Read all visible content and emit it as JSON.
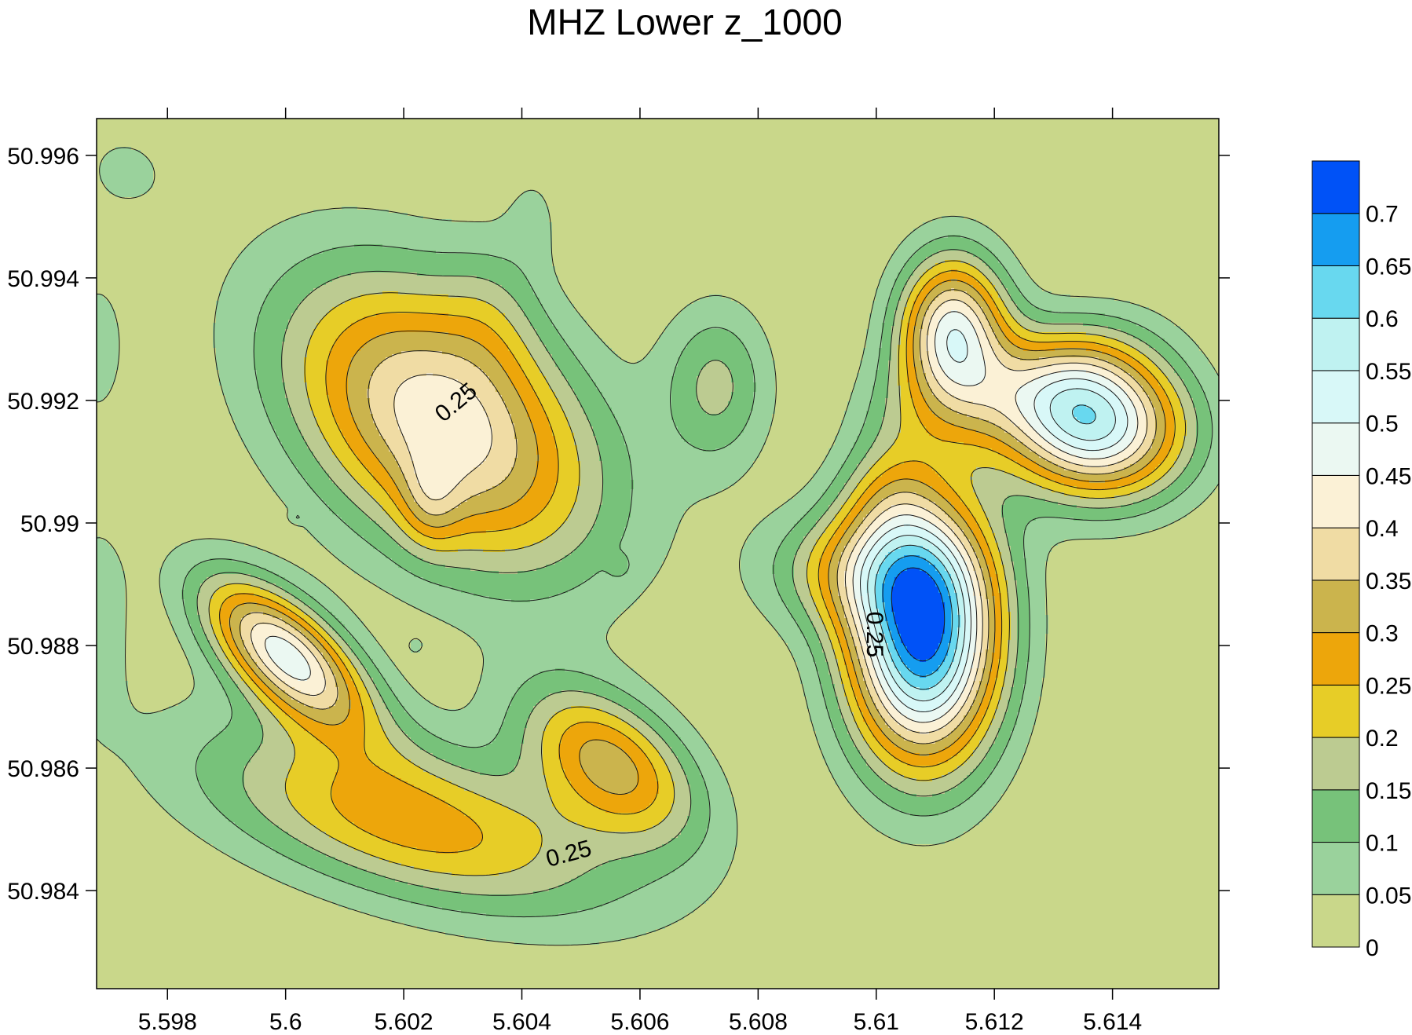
{
  "chart_data": {
    "type": "contour",
    "title": "MHZ Lower z_1000",
    "xlabel": "",
    "ylabel": "",
    "xlim": [
      5.5968,
      5.6158
    ],
    "ylim": [
      50.9824,
      50.9966
    ],
    "x_ticks": [
      5.598,
      5.6,
      5.602,
      5.604,
      5.606,
      5.608,
      5.61,
      5.612,
      5.614
    ],
    "x_tick_labels": [
      "5.598",
      "5.6",
      "5.602",
      "5.604",
      "5.606",
      "5.608",
      "5.61",
      "5.612",
      "5.614"
    ],
    "y_ticks": [
      50.996,
      50.994,
      50.992,
      50.99,
      50.988,
      50.986,
      50.984
    ],
    "y_tick_labels": [
      "50.996",
      "50.994",
      "50.992",
      "50.99",
      "50.988",
      "50.986",
      "50.984"
    ],
    "levels": [
      0,
      0.05,
      0.1,
      0.15,
      0.2,
      0.25,
      0.3,
      0.35,
      0.4,
      0.45,
      0.5,
      0.55,
      0.6,
      0.65,
      0.7
    ],
    "level_labels": [
      "0",
      "0.05",
      "0.1",
      "0.15",
      "0.2",
      "0.25",
      "0.3",
      "0.35",
      "0.4",
      "0.45",
      "0.5",
      "0.55",
      "0.6",
      "0.65",
      "0.7"
    ],
    "colors": [
      "#c9d78a",
      "#9ad29c",
      "#77c27a",
      "#bccb91",
      "#e7cd27",
      "#eda60b",
      "#cbb44d",
      "#f0dca4",
      "#fbf1d6",
      "#ebf8f2",
      "#d8f8f8",
      "#bff2f1",
      "#68d8ef",
      "#159df0",
      "#0052f7"
    ],
    "contour_labels": [
      {
        "text": "0.25",
        "x": 5.6029,
        "y": 50.99195,
        "angle": -40
      },
      {
        "text": "0.25",
        "x": 5.6048,
        "y": 50.98458,
        "angle": -15
      },
      {
        "text": "0.25",
        "x": 5.60995,
        "y": 50.98818,
        "angle": 90
      }
    ],
    "peaks": [
      {
        "x": 5.60265,
        "y": 50.99165,
        "sx": 0.0021,
        "sy": 0.00135,
        "angle": -38,
        "peak": 0.44
      },
      {
        "x": 5.6035,
        "y": 50.99355,
        "sx": 0.0006,
        "sy": 0.0009,
        "angle": 0,
        "peak": 0.06
      },
      {
        "x": 5.6042,
        "y": 50.99505,
        "sx": 0.00035,
        "sy": 0.0006,
        "angle": 0,
        "peak": 0.05
      },
      {
        "x": 5.60245,
        "y": 50.99035,
        "sx": 0.00035,
        "sy": 0.00055,
        "angle": 0,
        "peak": 0.1
      },
      {
        "x": 5.6021,
        "y": 50.98515,
        "sx": 0.0026,
        "sy": 0.0009,
        "angle": -15,
        "peak": 0.28
      },
      {
        "x": 5.6055,
        "y": 50.9861,
        "sx": 0.0012,
        "sy": 0.0007,
        "angle": -35,
        "peak": 0.31
      },
      {
        "x": 5.6,
        "y": 50.98785,
        "sx": 0.0012,
        "sy": 0.00055,
        "angle": -40,
        "peak": 0.47
      },
      {
        "x": 5.6108,
        "y": 50.9882,
        "sx": 0.0009,
        "sy": 0.0015,
        "angle": 0,
        "peak": 0.72
      },
      {
        "x": 5.6097,
        "y": 50.98925,
        "sx": 0.0011,
        "sy": 0.0007,
        "angle": 0,
        "peak": 0.2
      },
      {
        "x": 5.6102,
        "y": 50.99045,
        "sx": 0.0006,
        "sy": 0.0006,
        "angle": 0,
        "peak": 0.1
      },
      {
        "x": 5.6113,
        "y": 50.9931,
        "sx": 0.00065,
        "sy": 0.0009,
        "angle": 0,
        "peak": 0.47
      },
      {
        "x": 5.61365,
        "y": 50.99165,
        "sx": 0.0011,
        "sy": 0.00085,
        "angle": -10,
        "peak": 0.57
      },
      {
        "x": 5.6126,
        "y": 50.99225,
        "sx": 0.0013,
        "sy": 0.0006,
        "angle": 20,
        "peak": 0.12
      },
      {
        "x": 5.6103,
        "y": 50.9918,
        "sx": 0.0006,
        "sy": 0.0007,
        "angle": 0,
        "peak": 0.06
      },
      {
        "x": 5.6073,
        "y": 50.99225,
        "sx": 0.00065,
        "sy": 0.00095,
        "angle": 0,
        "peak": 0.16
      },
      {
        "x": 5.5973,
        "y": 50.99575,
        "sx": 0.00065,
        "sy": 0.00055,
        "angle": -20,
        "peak": 0.06
      },
      {
        "x": 5.5968,
        "y": 50.99285,
        "sx": 0.00045,
        "sy": 0.0011,
        "angle": 0,
        "peak": 0.065
      },
      {
        "x": 5.5968,
        "y": 50.9885,
        "sx": 0.00045,
        "sy": 0.0012,
        "angle": 0,
        "peak": 0.08
      },
      {
        "x": 5.60565,
        "y": 50.9893,
        "sx": 0.00012,
        "sy": 0.00012,
        "angle": 0,
        "peak": 0.06
      },
      {
        "x": 5.6022,
        "y": 50.988,
        "sx": 8e-05,
        "sy": 8e-05,
        "angle": 0,
        "peak": 0.055
      },
      {
        "x": 5.6002,
        "y": 50.9901,
        "sx": 8e-05,
        "sy": 6e-05,
        "angle": 0,
        "peak": 0.055
      }
    ]
  }
}
